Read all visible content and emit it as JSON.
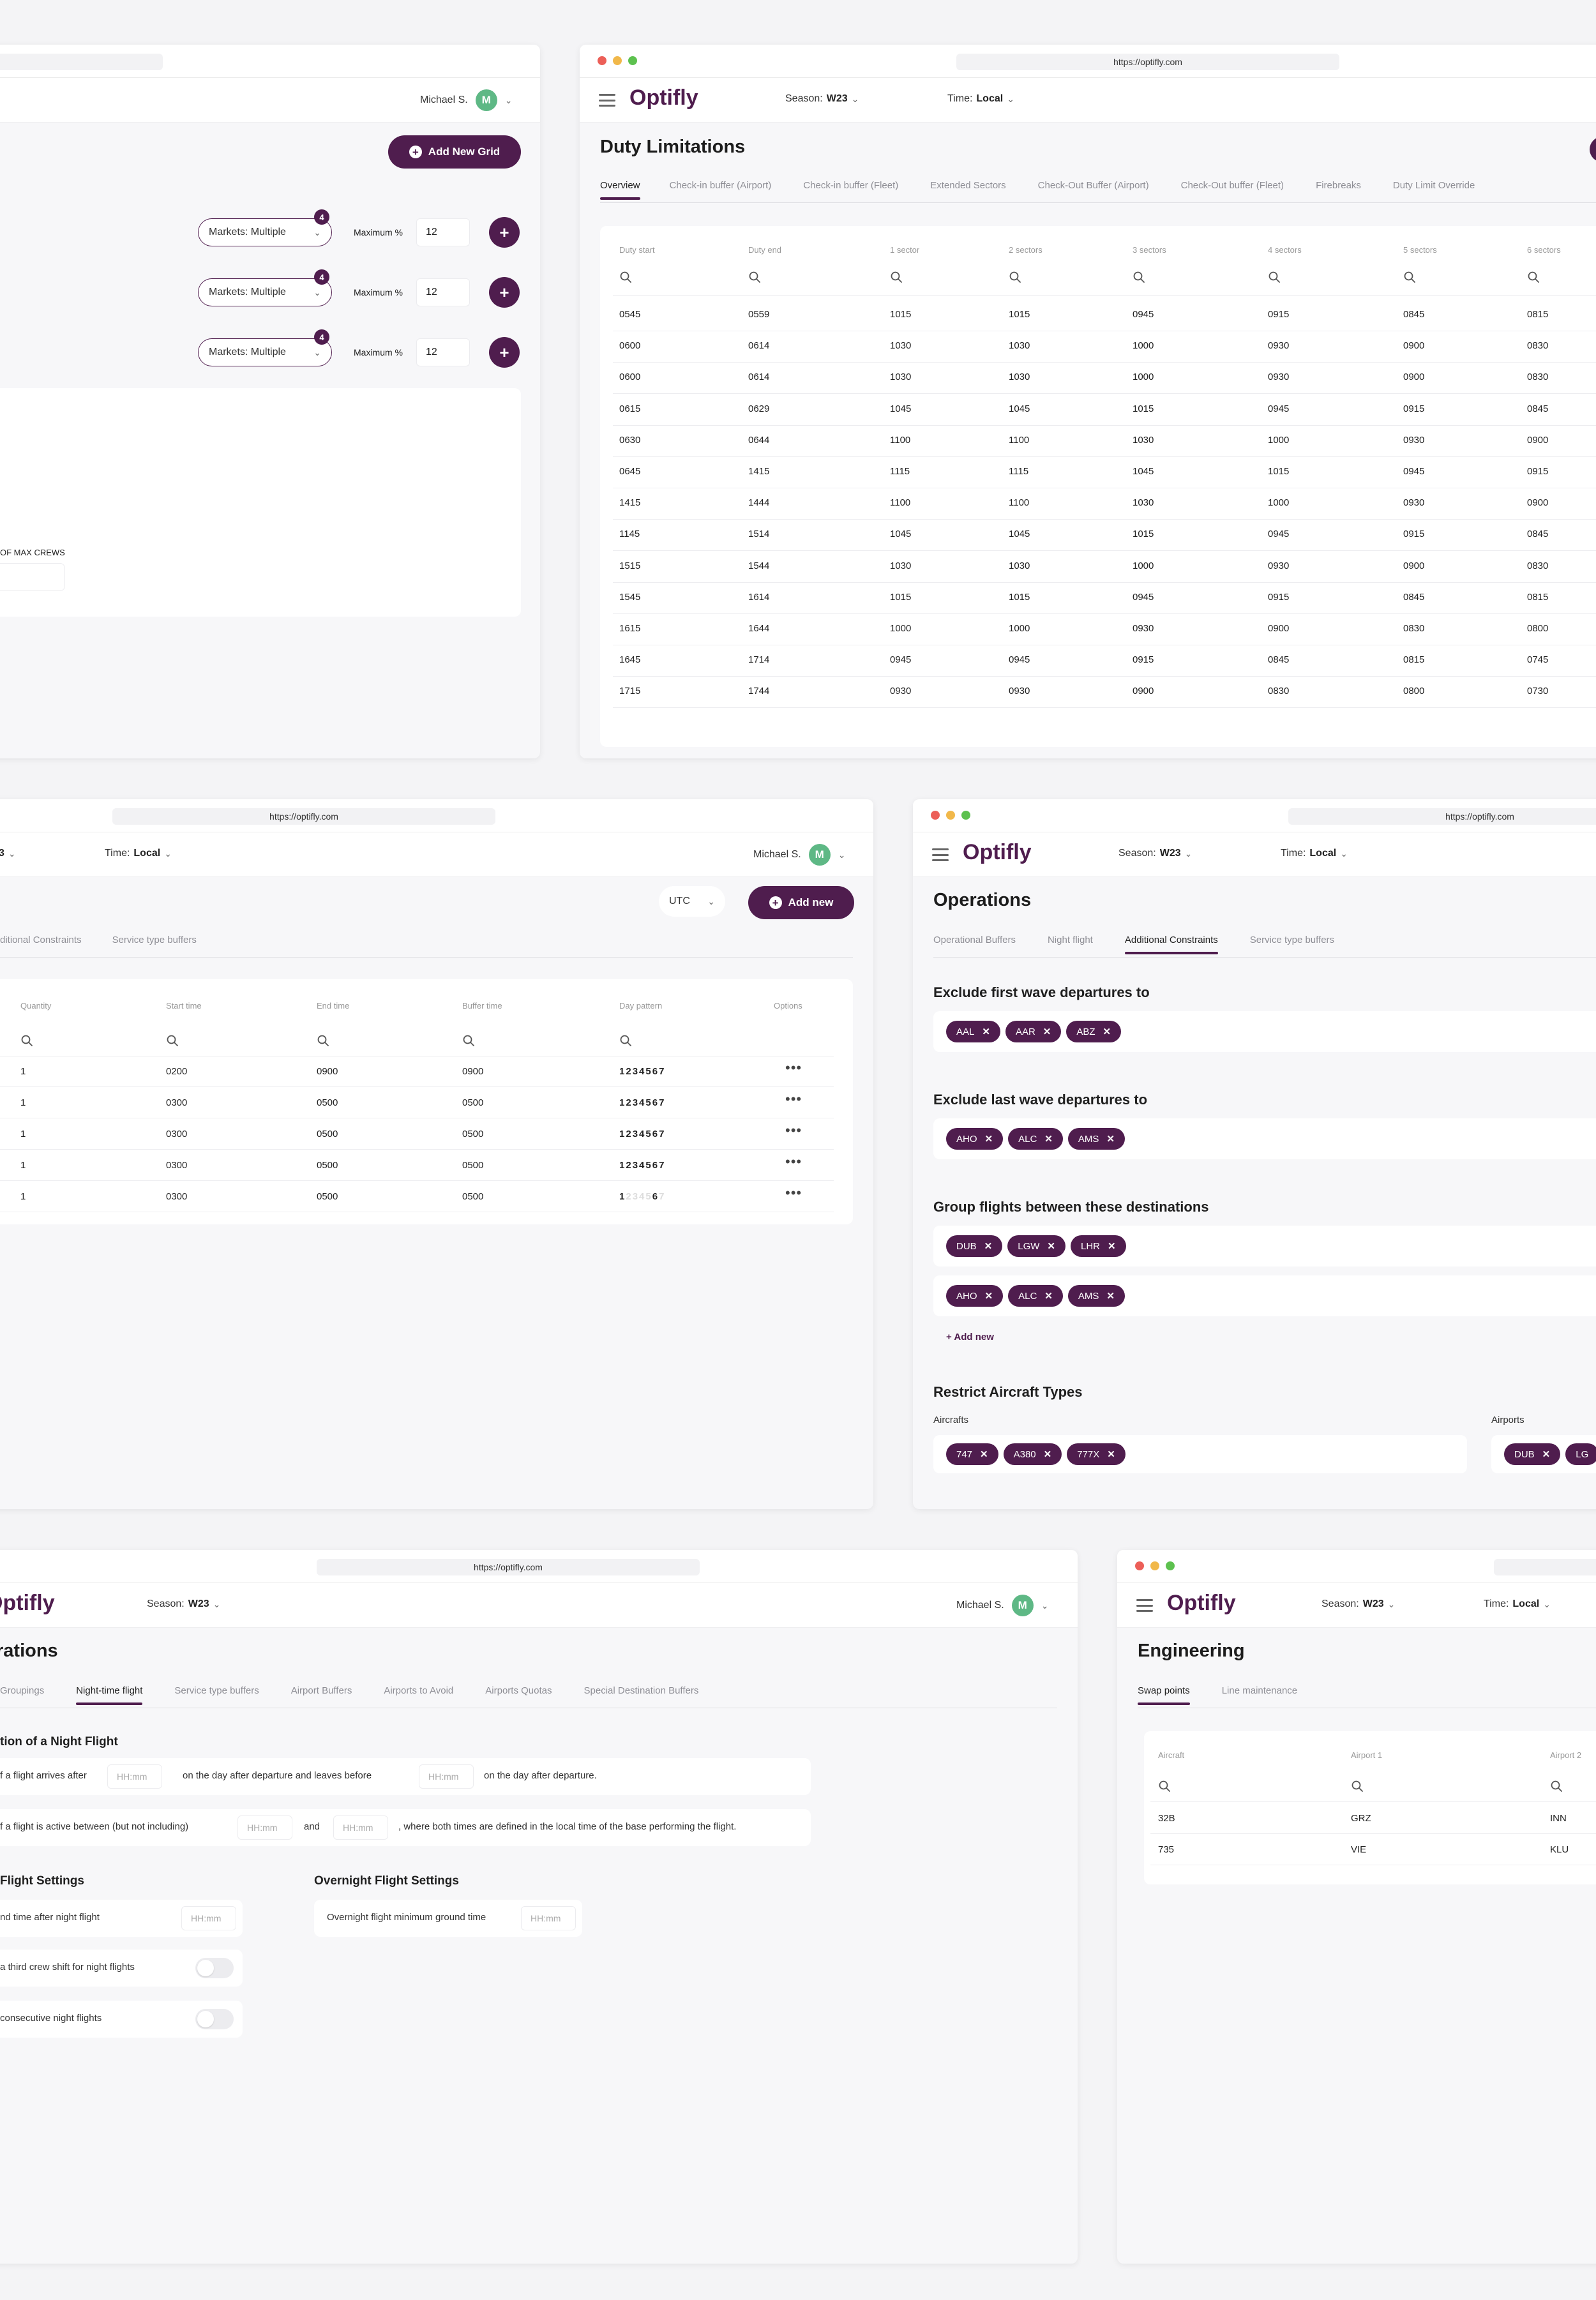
{
  "url": "https://optifly.com",
  "logo": "Optifly",
  "user": {
    "name": "Michael S.",
    "initial": "M"
  },
  "season": {
    "label": "Season:",
    "value": "W23"
  },
  "time": {
    "label": "Time:",
    "value": "Local"
  },
  "win1": {
    "user": "Michael S.",
    "add_grid": "Add New Grid",
    "rows": [
      {
        "badge": "4",
        "markets": "Markets: Multiple",
        "max_label": "Maximum %",
        "max_value": "12"
      },
      {
        "badge": "4",
        "markets": "Markets: Multiple",
        "max_label": "Maximum %",
        "max_value": "12"
      },
      {
        "badge": "4",
        "markets": "Markets: Multiple",
        "max_label": "Maximum %",
        "max_value": "12"
      }
    ],
    "max_crews_label": "OF MAX CREWS"
  },
  "win2": {
    "title": "Duty Limitations",
    "tabs": [
      "Overview",
      "Check-in buffer (Airport)",
      "Check-in buffer (Fleet)",
      "Extended Sectors",
      "Check-Out Buffer (Airport)",
      "Check-Out buffer (Fleet)",
      "Firebreaks",
      "Duty Limit Override"
    ],
    "columns": [
      "Duty start",
      "Duty end",
      "1 sector",
      "2 sectors",
      "3 sectors",
      "4 sectors",
      "5 sectors",
      "6 sectors"
    ],
    "rows": [
      [
        "0545",
        "0559",
        "1015",
        "1015",
        "0945",
        "0915",
        "0845",
        "0815"
      ],
      [
        "0600",
        "0614",
        "1030",
        "1030",
        "1000",
        "0930",
        "0900",
        "0830"
      ],
      [
        "0600",
        "0614",
        "1030",
        "1030",
        "1000",
        "0930",
        "0900",
        "0830"
      ],
      [
        "0615",
        "0629",
        "1045",
        "1045",
        "1015",
        "0945",
        "0915",
        "0845"
      ],
      [
        "0630",
        "0644",
        "1100",
        "1100",
        "1030",
        "1000",
        "0930",
        "0900"
      ],
      [
        "0645",
        "1415",
        "1115",
        "1115",
        "1045",
        "1015",
        "0945",
        "0915"
      ],
      [
        "1415",
        "1444",
        "1100",
        "1100",
        "1030",
        "1000",
        "0930",
        "0900"
      ],
      [
        "1145",
        "1514",
        "1045",
        "1045",
        "1015",
        "0945",
        "0915",
        "0845"
      ],
      [
        "1515",
        "1544",
        "1030",
        "1030",
        "1000",
        "0930",
        "0900",
        "0830"
      ],
      [
        "1545",
        "1614",
        "1015",
        "1015",
        "0945",
        "0915",
        "0845",
        "0815"
      ],
      [
        "1615",
        "1644",
        "1000",
        "1000",
        "0930",
        "0900",
        "0830",
        "0800"
      ],
      [
        "1645",
        "1714",
        "0945",
        "0945",
        "0915",
        "0845",
        "0815",
        "0745"
      ],
      [
        "1715",
        "1744",
        "0930",
        "0930",
        "0900",
        "0830",
        "0800",
        "0730"
      ]
    ]
  },
  "win3": {
    "season_frag": "3",
    "utc": "UTC",
    "add_new": "Add new",
    "tabs": [
      "ditional Constraints",
      "Service type buffers"
    ],
    "columns": [
      "Quantity",
      "Start time",
      "End time",
      "Buffer time",
      "Day pattern",
      "Options"
    ],
    "rows": [
      {
        "qty": "1",
        "start": "0200",
        "end": "0900",
        "buffer": "0900",
        "days": [
          "1",
          "2",
          "3",
          "4",
          "5",
          "6",
          "7"
        ],
        "on": [
          1,
          1,
          1,
          1,
          1,
          1,
          1
        ]
      },
      {
        "qty": "1",
        "start": "0300",
        "end": "0500",
        "buffer": "0500",
        "days": [
          "1",
          "2",
          "3",
          "4",
          "5",
          "6",
          "7"
        ],
        "on": [
          1,
          1,
          1,
          1,
          1,
          1,
          1
        ]
      },
      {
        "qty": "1",
        "start": "0300",
        "end": "0500",
        "buffer": "0500",
        "days": [
          "1",
          "2",
          "3",
          "4",
          "5",
          "6",
          "7"
        ],
        "on": [
          1,
          1,
          1,
          1,
          1,
          1,
          1
        ]
      },
      {
        "qty": "1",
        "start": "0300",
        "end": "0500",
        "buffer": "0500",
        "days": [
          "1",
          "2",
          "3",
          "4",
          "5",
          "6",
          "7"
        ],
        "on": [
          1,
          1,
          1,
          1,
          1,
          1,
          1
        ]
      },
      {
        "qty": "1",
        "start": "0300",
        "end": "0500",
        "buffer": "0500",
        "days": [
          "1",
          "2",
          "3",
          "4",
          "5",
          "6",
          "7"
        ],
        "on": [
          1,
          0,
          0,
          0,
          0,
          1,
          0
        ]
      }
    ]
  },
  "win4": {
    "title": "Operations",
    "tabs": [
      "Operational Buffers",
      "Night flight",
      "Additional Constraints",
      "Service type buffers"
    ],
    "first_wave": {
      "title": "Exclude first wave departures to",
      "chips": [
        "AAL",
        "AAR",
        "ABZ"
      ]
    },
    "last_wave": {
      "title": "Exclude last wave departures to",
      "chips": [
        "AHO",
        "ALC",
        "AMS"
      ]
    },
    "group": {
      "title": "Group flights between these destinations",
      "groups": [
        [
          "DUB",
          "LGW",
          "LHR"
        ],
        [
          "AHO",
          "ALC",
          "AMS"
        ]
      ],
      "add": "+ Add new"
    },
    "restrict": {
      "title": "Restrict Aircraft Types",
      "aircraft_label": "Aircrafts",
      "aircraft": [
        "747",
        "A380",
        "777X"
      ],
      "airports_label": "Airports",
      "airports": [
        "DUB",
        "LG"
      ]
    }
  },
  "win5": {
    "title": "rations",
    "tabs": [
      "Groupings",
      "Night-time flight",
      "Service type buffers",
      "Airport Buffers",
      "Airports to Avoid",
      "Airports Quotas",
      "Special Destination Buffers"
    ],
    "def_title": "tion of a Night Flight",
    "line1": {
      "a": "f a flight arrives after",
      "ph1": "HH:mm",
      "b": "on the day after departure and leaves before",
      "ph2": "HH:mm",
      "c": "on the day after departure."
    },
    "line2": {
      "a": "f a flight is active between (but not including)",
      "ph1": "HH:mm",
      "b": "and",
      "ph2": "HH:mm",
      "c": ", where both times are defined in the local time of the base performing the flight."
    },
    "nf_title": "Flight Settings",
    "nf_items": [
      "nd time after night flight",
      "a third crew shift for night flights",
      "consecutive night flights"
    ],
    "nf_ph": "HH:mm",
    "of_title": "Overnight Flight Settings",
    "of_label": "Overnight flight minimum ground time",
    "of_ph": "HH:mm"
  },
  "win6": {
    "title": "Engineering",
    "tabs": [
      "Swap points",
      "Line maintenance"
    ],
    "columns": [
      "Aircraft",
      "Airport 1",
      "Airport 2"
    ],
    "rows": [
      [
        "32B",
        "GRZ",
        "INN"
      ],
      [
        "735",
        "VIE",
        "KLU"
      ]
    ]
  }
}
